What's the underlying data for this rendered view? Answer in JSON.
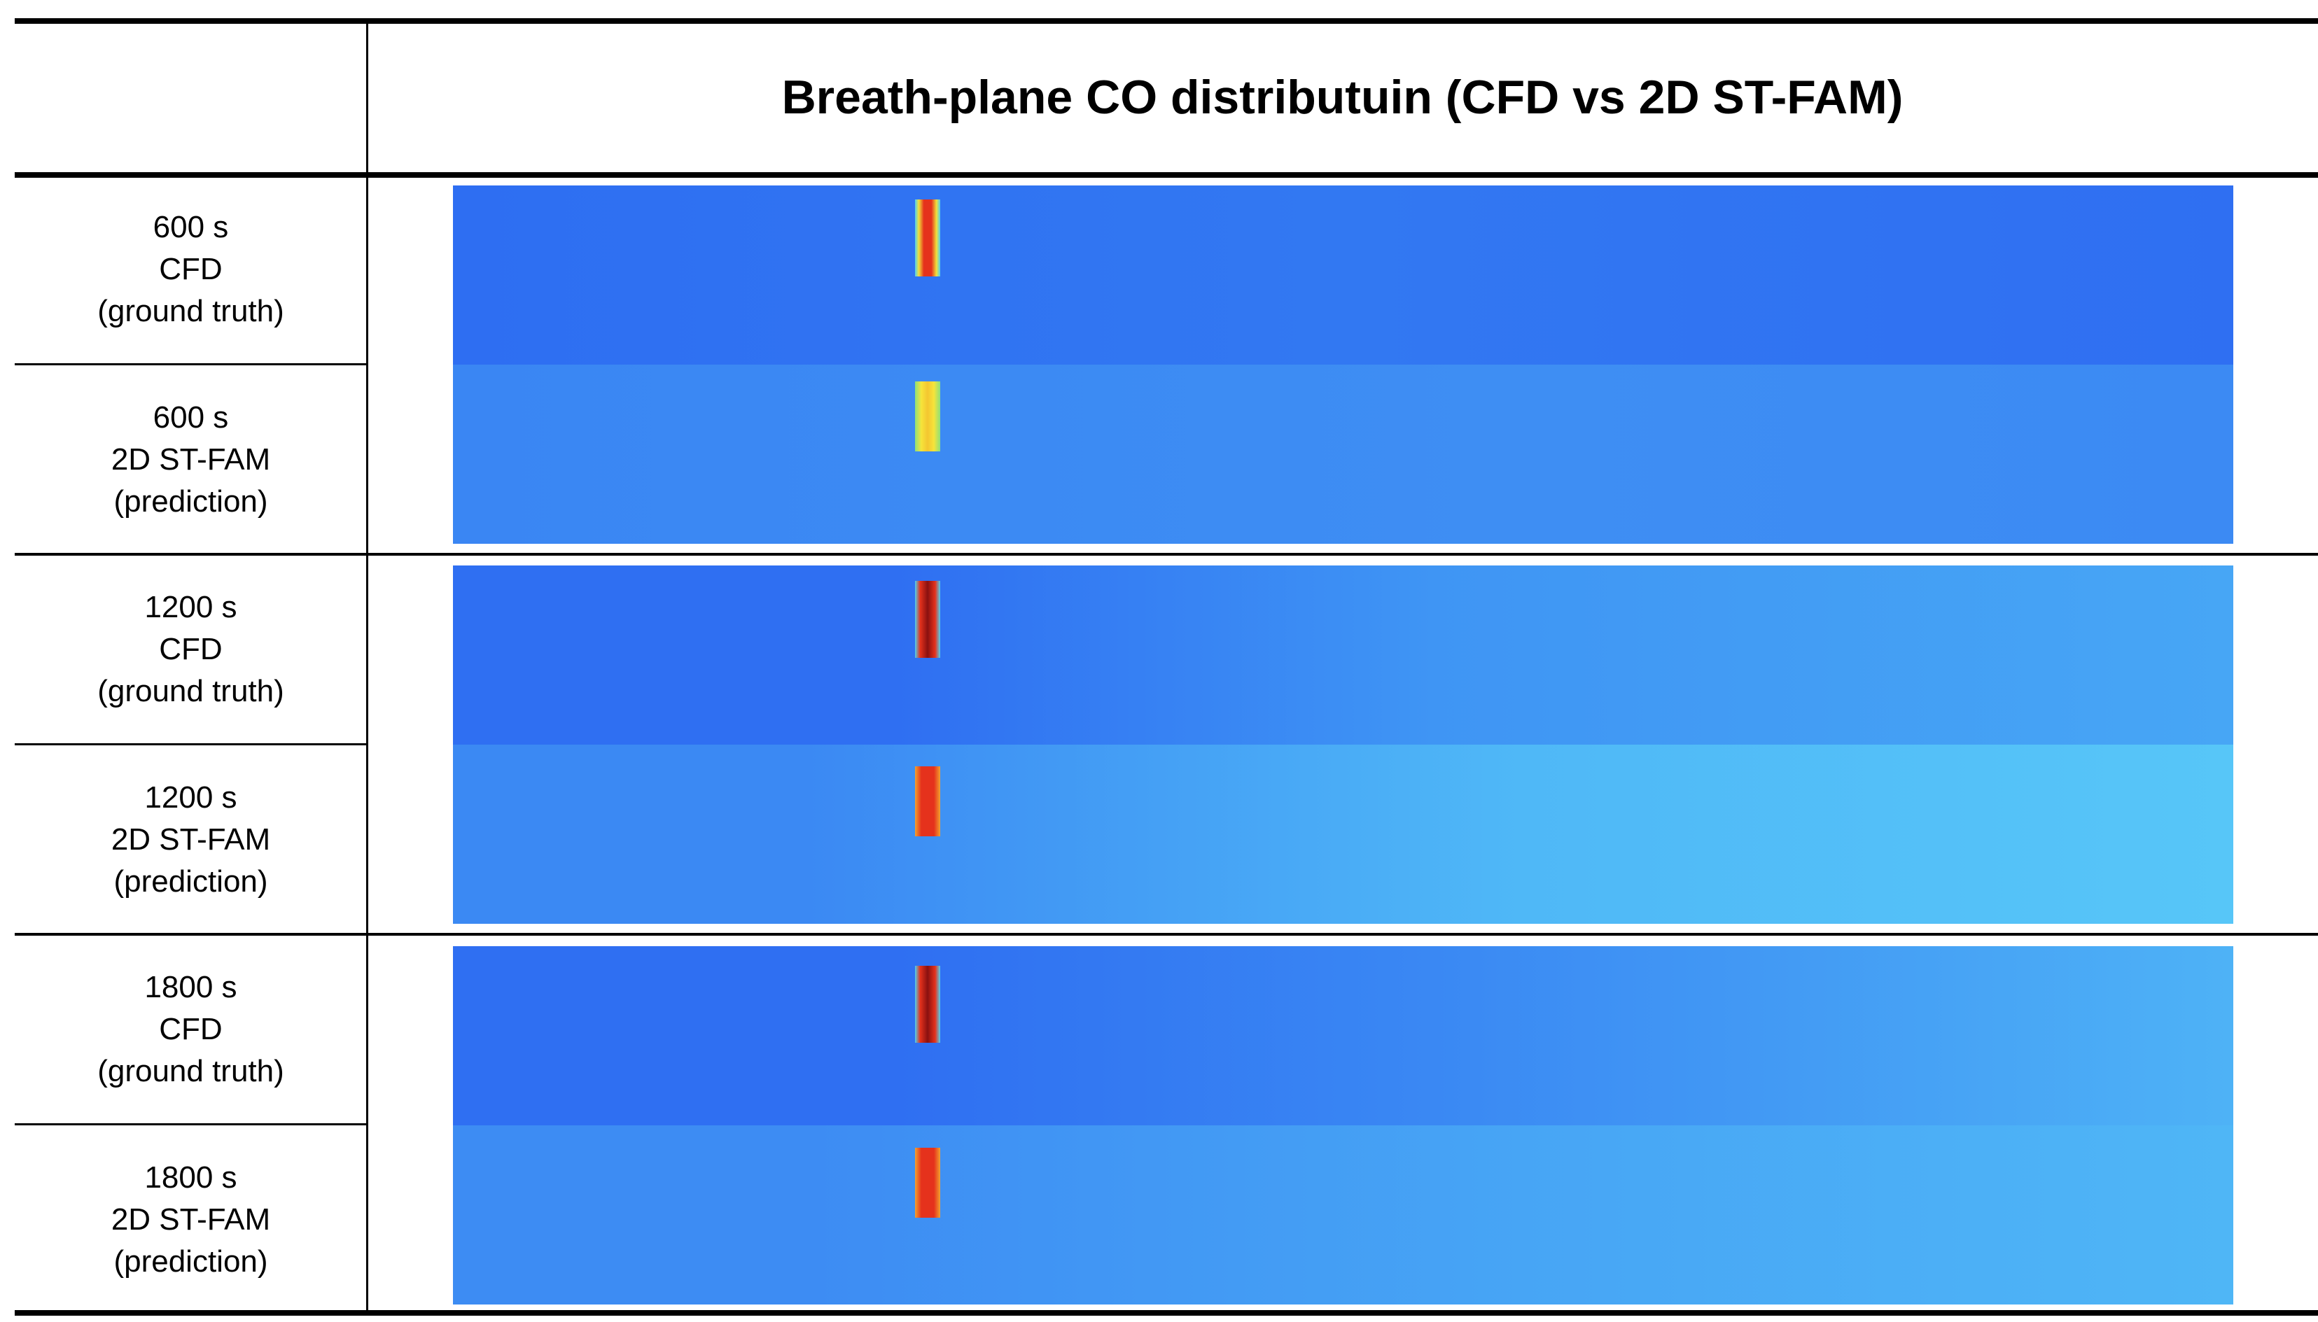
{
  "header": {
    "title": "Breath-plane CO distributuin (CFD vs 2D ST-FAM)"
  },
  "rows": [
    {
      "lines": [
        "600 s",
        "CFD",
        "(ground truth)"
      ]
    },
    {
      "lines": [
        "600 s",
        "2D ST-FAM",
        "(prediction)"
      ]
    },
    {
      "lines": [
        "1200 s",
        "CFD",
        "(ground truth)"
      ]
    },
    {
      "lines": [
        "1200 s",
        "2D ST-FAM",
        "(prediction)"
      ]
    },
    {
      "lines": [
        "1800 s",
        "CFD",
        "(ground truth)"
      ]
    },
    {
      "lines": [
        "1800 s",
        "2D ST-FAM",
        "(prediction)"
      ]
    }
  ]
}
